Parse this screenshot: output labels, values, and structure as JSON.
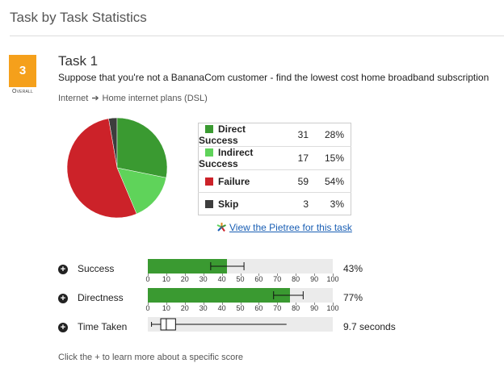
{
  "page": {
    "title": "Task by Task Statistics"
  },
  "badge": {
    "score": "3",
    "caption": "Overall",
    "color": "#f5a01b"
  },
  "task": {
    "name": "Task 1",
    "description": "Suppose that you're not a BananaCom customer - find the lowest cost home broadband subscription",
    "breadcrumb": {
      "from": "Internet",
      "arrow": "➔",
      "to": "Home internet plans (DSL)"
    }
  },
  "results": [
    {
      "label": "Direct Success",
      "count": "31",
      "percent": "28%",
      "value": 31,
      "color": "#3a9a31"
    },
    {
      "label": "Indirect Success",
      "count": "17",
      "percent": "15%",
      "value": 17,
      "color": "#5fd35a"
    },
    {
      "label": "Failure",
      "count": "59",
      "percent": "54%",
      "value": 59,
      "color": "#cc2229"
    },
    {
      "label": "Skip",
      "count": "3",
      "percent": "3%",
      "value": 3,
      "color": "#3d3d3d"
    }
  ],
  "pietree": {
    "link_text": "View the Pietree for this task",
    "icon": "pietree-icon"
  },
  "metrics": {
    "success": {
      "label": "Success",
      "value_text": "43%",
      "fill": 0.43,
      "err_low": 0.34,
      "err_high": 0.52
    },
    "directness": {
      "label": "Directness",
      "value_text": "77%",
      "fill": 0.77,
      "err_low": 0.68,
      "err_high": 0.84
    },
    "time_taken": {
      "label": "Time Taken",
      "value_text": "9.7 seconds",
      "whisker_low": 0.02,
      "q1": 0.07,
      "median": 0.1,
      "q3": 0.15,
      "whisker_high": 0.75
    }
  },
  "ticks": [
    "0",
    "10",
    "20",
    "30",
    "40",
    "50",
    "60",
    "70",
    "80",
    "90",
    "100"
  ],
  "footer": {
    "hint": "Click the + to learn more about a specific score"
  },
  "chart_data": {
    "type": "pie",
    "labels": [
      "Direct Success",
      "Indirect Success",
      "Failure",
      "Skip"
    ],
    "values": [
      31,
      17,
      59,
      3
    ],
    "colors": [
      "#3a9a31",
      "#5fd35a",
      "#cc2229",
      "#3d3d3d"
    ]
  }
}
